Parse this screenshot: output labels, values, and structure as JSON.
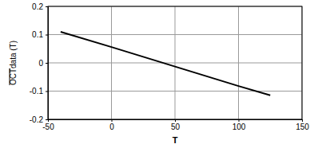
{
  "chart_data": {
    "type": "line",
    "x_label": "T",
    "y_label": "OCTdata (T)",
    "x": [
      -40,
      0,
      50,
      100,
      125
    ],
    "values": [
      0.11,
      0.056,
      -0.013,
      -0.082,
      -0.115
    ],
    "color": "#000000",
    "xlim": [
      -50,
      150
    ],
    "xticks": [
      -50,
      0,
      50,
      100,
      150
    ],
    "ylim": [
      -0.2,
      0.2
    ],
    "yticks": [
      -0.2,
      -0.1,
      0,
      0.1,
      0.2
    ],
    "grid": true
  }
}
